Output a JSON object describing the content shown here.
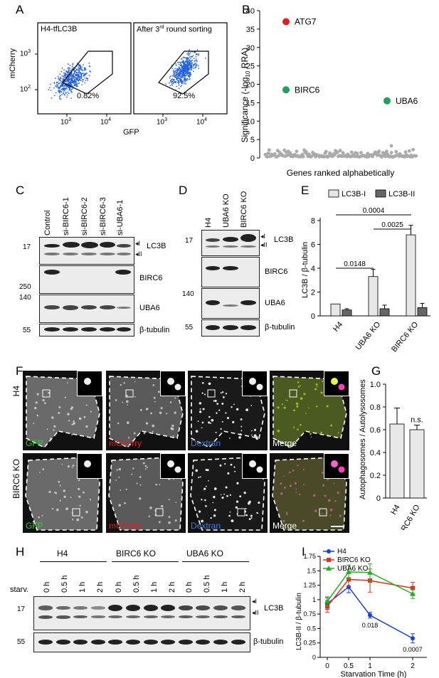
{
  "panels": {
    "A": "A",
    "B": "B",
    "C": "C",
    "D": "D",
    "E": "E",
    "F": "F",
    "G": "G",
    "H": "H",
    "I": "I"
  },
  "panelA": {
    "plot1_title": "H4-tfLC3B",
    "plot2_title": "After 3",
    "plot2_title_sup": "rd",
    "plot2_title_rest": " round sorting",
    "plot1_pct": "0.82%",
    "plot2_pct": "92.5%",
    "ylabel": "mCherry",
    "xlabel": "GFP",
    "yticks": [
      "10",
      "10"
    ],
    "ytick_exp": [
      "3",
      "2"
    ],
    "xticks": [
      "10",
      "10"
    ],
    "xtick_exp": [
      "3",
      "4"
    ],
    "dot_color": "#1f5fe0"
  },
  "chart_data": [
    {
      "type": "scatter",
      "panel": "B",
      "ylabel": "Significance (-log",
      "ylabel_sub": "10",
      "ylabel_rest": " RRA)",
      "xlabel": "Genes ranked alphabetically",
      "ylim": [
        0,
        40
      ],
      "yticks": [
        "0",
        "5",
        "10",
        "15",
        "20",
        "25",
        "30",
        "35",
        "40"
      ],
      "highlighted": [
        {
          "name": "ATG7",
          "value": 37,
          "color": "#e02020"
        },
        {
          "name": "BIRC6",
          "value": 18.5,
          "color": "#20a060"
        },
        {
          "name": "UBA6",
          "value": 15.5,
          "color": "#20a060"
        }
      ],
      "background_color": "#aaaaaa"
    },
    {
      "type": "bar",
      "panel": "E",
      "ylabel": "LC3B / β-tubulin",
      "categories": [
        "H4",
        "UBA6 KO",
        "BIRC6 KO"
      ],
      "ylim": [
        0,
        8
      ],
      "yticks": [
        "0",
        "2",
        "4",
        "6",
        "8"
      ],
      "series": [
        {
          "name": "LC3B-I",
          "values": [
            1.0,
            3.3,
            6.8
          ],
          "errors": [
            0,
            0.6,
            0.8
          ],
          "color": "#e6e6e6"
        },
        {
          "name": "LC3B-II",
          "values": [
            0.5,
            0.6,
            0.7
          ],
          "errors": [
            0.1,
            0.3,
            0.35
          ],
          "color": "#666666"
        }
      ],
      "pvalues": [
        "0.0148",
        "0.0025",
        "0.0004"
      ]
    },
    {
      "type": "bar",
      "panel": "G",
      "ylabel": "Autophagosomes / Autolysosomes",
      "categories": [
        "H4",
        "BIRC6 KO"
      ],
      "ylim": [
        0,
        1.0
      ],
      "yticks": [
        "0",
        "0.2",
        "0.4",
        "0.6",
        "0.8",
        "1.0"
      ],
      "values": [
        0.65,
        0.6
      ],
      "errors": [
        0.14,
        0.04
      ],
      "annotation": "n.s."
    },
    {
      "type": "line",
      "panel": "I",
      "ylabel": "LC3B-II / β-tubulin",
      "xlabel": "Starvation Time (h)",
      "x": [
        0,
        0.5,
        1,
        2
      ],
      "xticks": [
        "0",
        "0.5",
        "1",
        "2"
      ],
      "ylim": [
        0,
        1.75
      ],
      "yticks": [
        "0",
        "0.25",
        "0.5",
        "0.75",
        "1",
        "1.25",
        "1.5",
        "1.75"
      ],
      "series": [
        {
          "name": "H4",
          "values": [
            0.93,
            1.22,
            0.73,
            0.33
          ],
          "color": "#1a3fd6"
        },
        {
          "name": "BIRC6 KO",
          "values": [
            0.88,
            1.35,
            1.33,
            1.2
          ],
          "color": "#e0301e"
        },
        {
          "name": "UBA6 KO",
          "values": [
            0.97,
            1.48,
            1.47,
            1.1
          ],
          "color": "#20b020"
        }
      ],
      "annotations": [
        "0.018",
        "0.0007"
      ]
    }
  ],
  "panelC": {
    "lanes": [
      "Control",
      "si-BIRC6-1",
      "si-BIRC6-2",
      "si-BIRC6-3",
      "si-UBA6-1"
    ],
    "rows": [
      "LC3B",
      "BIRC6",
      "UBA6",
      "β-tubulin"
    ],
    "mw": [
      "17",
      "250",
      "140",
      "55"
    ],
    "lc3_forms": [
      "I",
      "II"
    ]
  },
  "panelD": {
    "lanes": [
      "H4",
      "UBA6 KO",
      "BIRC6 KO"
    ],
    "rows": [
      "LC3B",
      "BIRC6",
      "UBA6",
      "β-tubulin"
    ],
    "mw": [
      "17",
      "140",
      "55"
    ],
    "lc3_forms": [
      "I",
      "II"
    ]
  },
  "panelF": {
    "rows": [
      "H4",
      "BIRC6 KO"
    ],
    "channels": [
      "GFP",
      "mCherry",
      "Dextran",
      "Merge"
    ],
    "channel_colors": [
      "#2cd12c",
      "#e02020",
      "#3a7de0",
      "#ffffff"
    ]
  },
  "panelH": {
    "groups": [
      "H4",
      "BIRC6 KO",
      "UBA6 KO"
    ],
    "times": [
      "0 h",
      "0.5 h",
      "1 h",
      "2 h"
    ],
    "starv_label": "starv.",
    "rows": [
      "LC3B",
      "β-tubulin"
    ],
    "mw": [
      "17",
      "55"
    ],
    "lc3_forms": [
      "I",
      "II"
    ]
  }
}
